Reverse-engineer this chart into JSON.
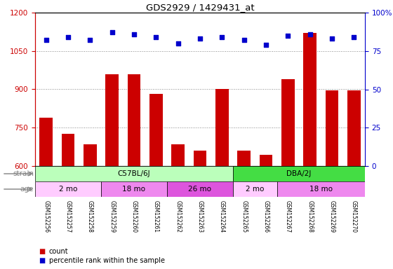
{
  "title": "GDS2929 / 1429431_at",
  "samples": [
    "GSM152256",
    "GSM152257",
    "GSM152258",
    "GSM152259",
    "GSM152260",
    "GSM152261",
    "GSM152262",
    "GSM152263",
    "GSM152264",
    "GSM152265",
    "GSM152266",
    "GSM152267",
    "GSM152268",
    "GSM152269",
    "GSM152270"
  ],
  "counts": [
    790,
    725,
    685,
    960,
    960,
    882,
    685,
    660,
    900,
    660,
    643,
    940,
    1120,
    895,
    895
  ],
  "percentiles": [
    82,
    84,
    82,
    87,
    86,
    84,
    80,
    83,
    84,
    82,
    79,
    85,
    86,
    83,
    84
  ],
  "ylim_left": [
    600,
    1200
  ],
  "ylim_right": [
    0,
    100
  ],
  "yticks_left": [
    600,
    750,
    900,
    1050,
    1200
  ],
  "yticks_right": [
    0,
    25,
    50,
    75,
    100
  ],
  "bar_color": "#CC0000",
  "dot_color": "#0000CC",
  "strain_groups": [
    {
      "label": "C57BL/6J",
      "start": 0,
      "end": 9,
      "color": "#BBFFBB"
    },
    {
      "label": "DBA/2J",
      "start": 9,
      "end": 15,
      "color": "#44DD44"
    }
  ],
  "age_groups": [
    {
      "label": "2 mo",
      "start": 0,
      "end": 3,
      "color": "#FFCCFF"
    },
    {
      "label": "18 mo",
      "start": 3,
      "end": 6,
      "color": "#EE88EE"
    },
    {
      "label": "26 mo",
      "start": 6,
      "end": 9,
      "color": "#DD55DD"
    },
    {
      "label": "2 mo",
      "start": 9,
      "end": 11,
      "color": "#FFCCFF"
    },
    {
      "label": "18 mo",
      "start": 11,
      "end": 15,
      "color": "#EE88EE"
    }
  ],
  "grid_color": "#888888",
  "bg_color": "#FFFFFF",
  "tick_area_color": "#CCCCCC",
  "label_color_strain": "gray",
  "label_color_age": "gray"
}
